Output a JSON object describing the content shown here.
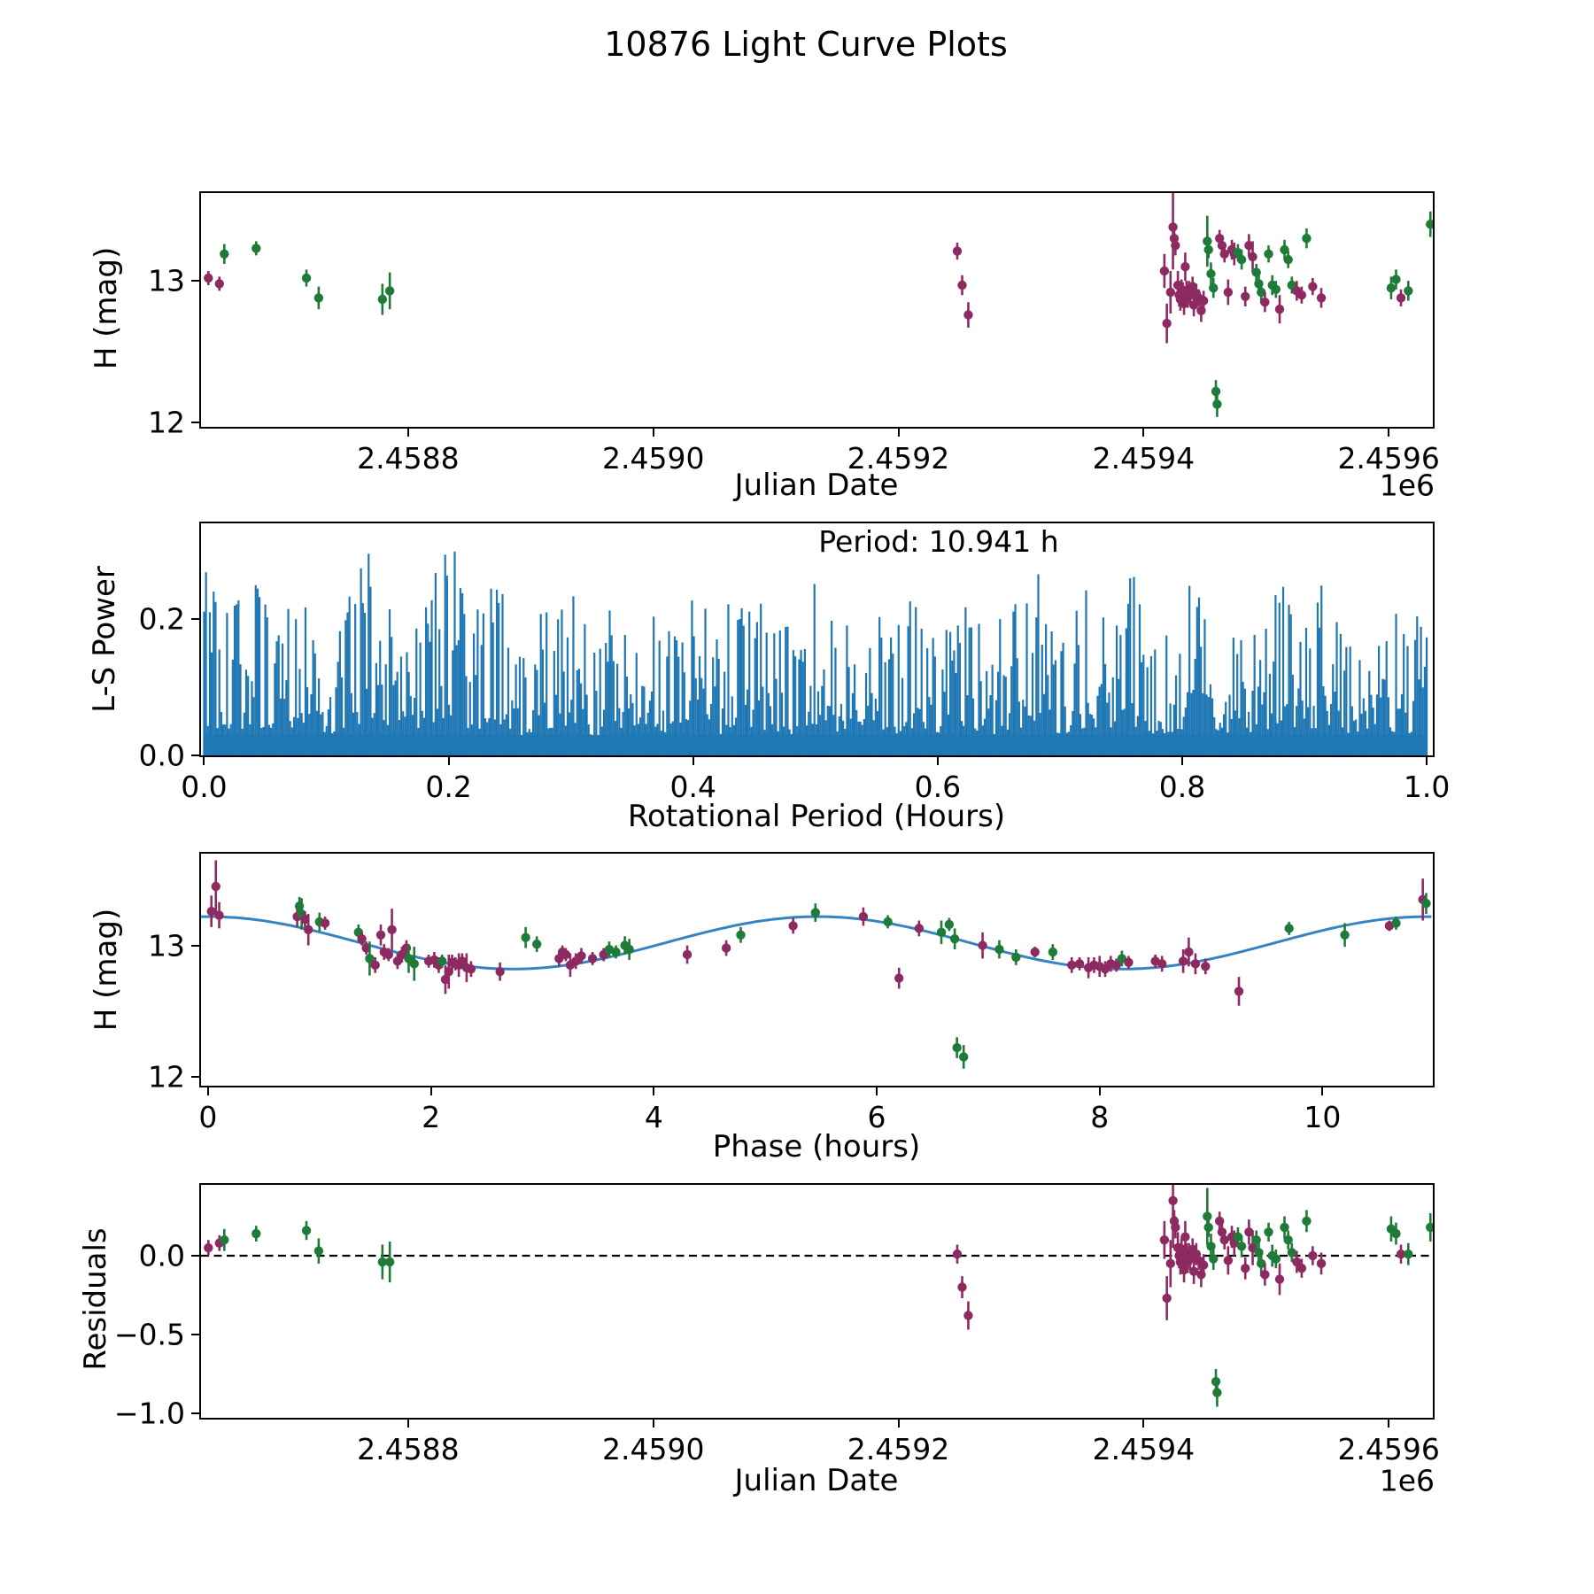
{
  "title": "10876 Light Curve Plots",
  "colors": {
    "green": "#1e7b38",
    "purple": "#8e2a62",
    "periodogram_blue": "#1f77b4",
    "fit_curve_blue": "#3584c2",
    "axis_black": "#000000"
  },
  "chart_data": [
    {
      "type": "scatter",
      "id": "jd-magnitude",
      "xlabel": "Julian Date",
      "ylabel": "H (mag)",
      "offset_text": "1e6",
      "xlim": [
        2458631,
        2459636
      ],
      "ylim": [
        11.97,
        13.62
      ],
      "xticks": {
        "values": [
          2458800,
          2459000,
          2459200,
          2459400,
          2459600
        ],
        "labels": [
          "2.4588",
          "2.4590",
          "2.4592",
          "2.4594",
          "2.4596"
        ]
      },
      "yticks": {
        "values": [
          12,
          13
        ],
        "labels": [
          "12",
          "13"
        ]
      },
      "series_note": "points = [jd, H_mag, err, residual, band] band g=green telescope, p=purple telescope",
      "points": [
        [
          2458637,
          13.02,
          0.05,
          0.05,
          "p"
        ],
        [
          2458646,
          12.98,
          0.05,
          0.08,
          "p"
        ],
        [
          2458650,
          13.19,
          0.07,
          0.1,
          "g"
        ],
        [
          2458676,
          13.23,
          0.05,
          0.14,
          "g"
        ],
        [
          2458717,
          13.02,
          0.06,
          0.16,
          "g"
        ],
        [
          2458727,
          12.88,
          0.08,
          0.03,
          "g"
        ],
        [
          2458779,
          12.87,
          0.11,
          -0.04,
          "g"
        ],
        [
          2458785,
          12.93,
          0.13,
          -0.04,
          "g"
        ],
        [
          2459248,
          13.21,
          0.06,
          0.01,
          "p"
        ],
        [
          2459252,
          12.97,
          0.07,
          -0.2,
          "p"
        ],
        [
          2459257,
          12.76,
          0.09,
          -0.38,
          "p"
        ],
        [
          2459417,
          13.07,
          0.12,
          0.1,
          "p"
        ],
        [
          2459419,
          12.7,
          0.14,
          -0.27,
          "p"
        ],
        [
          2459422,
          12.92,
          0.15,
          -0.05,
          "p"
        ],
        [
          2459424,
          13.38,
          0.3,
          0.35,
          "p"
        ],
        [
          2459425,
          13.3,
          0.07,
          0.22,
          "p"
        ],
        [
          2459426,
          13.25,
          0.07,
          0.18,
          "p"
        ],
        [
          2459428,
          12.97,
          0.1,
          0.05,
          "p"
        ],
        [
          2459429,
          12.9,
          0.08,
          0.0,
          "p"
        ],
        [
          2459430,
          12.87,
          0.08,
          -0.04,
          "p"
        ],
        [
          2459431,
          12.94,
          0.07,
          0.04,
          "p"
        ],
        [
          2459432,
          12.9,
          0.09,
          -0.02,
          "p"
        ],
        [
          2459433,
          12.84,
          0.08,
          -0.09,
          "p"
        ],
        [
          2459434,
          13.1,
          0.1,
          0.12,
          "p"
        ],
        [
          2459435,
          12.92,
          0.08,
          0.0,
          "p"
        ],
        [
          2459436,
          12.88,
          0.07,
          -0.04,
          "p"
        ],
        [
          2459437,
          12.94,
          0.06,
          0.02,
          "p"
        ],
        [
          2459438,
          12.9,
          0.07,
          -0.02,
          "p"
        ],
        [
          2459440,
          12.96,
          0.07,
          0.04,
          "p"
        ],
        [
          2459441,
          12.83,
          0.08,
          -0.1,
          "p"
        ],
        [
          2459443,
          12.91,
          0.07,
          0.01,
          "p"
        ],
        [
          2459445,
          12.88,
          0.06,
          -0.03,
          "p"
        ],
        [
          2459447,
          12.79,
          0.08,
          -0.12,
          "p"
        ],
        [
          2459449,
          12.86,
          0.07,
          -0.06,
          "p"
        ],
        [
          2459452,
          13.28,
          0.18,
          0.25,
          "g"
        ],
        [
          2459453,
          13.22,
          0.06,
          0.18,
          "g"
        ],
        [
          2459455,
          13.05,
          0.08,
          0.06,
          "g"
        ],
        [
          2459457,
          12.95,
          0.07,
          -0.02,
          "g"
        ],
        [
          2459459,
          12.22,
          0.08,
          -0.8,
          "g"
        ],
        [
          2459460,
          12.13,
          0.09,
          -0.87,
          "g"
        ],
        [
          2459462,
          13.3,
          0.06,
          0.22,
          "p"
        ],
        [
          2459464,
          13.25,
          0.07,
          0.15,
          "p"
        ],
        [
          2459466,
          13.19,
          0.06,
          0.1,
          "p"
        ],
        [
          2459469,
          12.92,
          0.09,
          -0.03,
          "p"
        ],
        [
          2459472,
          13.22,
          0.07,
          0.12,
          "p"
        ],
        [
          2459474,
          13.19,
          0.08,
          0.08,
          "p"
        ],
        [
          2459477,
          13.2,
          0.06,
          0.12,
          "g"
        ],
        [
          2459480,
          13.15,
          0.07,
          0.06,
          "g"
        ],
        [
          2459483,
          12.89,
          0.07,
          -0.08,
          "p"
        ],
        [
          2459486,
          13.25,
          0.08,
          0.15,
          "p"
        ],
        [
          2459489,
          13.17,
          0.11,
          0.05,
          "p"
        ],
        [
          2459492,
          13.06,
          0.06,
          0.1,
          "g"
        ],
        [
          2459494,
          12.98,
          0.07,
          0.02,
          "g"
        ],
        [
          2459496,
          12.92,
          0.08,
          -0.05,
          "g"
        ],
        [
          2459499,
          12.85,
          0.07,
          -0.12,
          "p"
        ],
        [
          2459502,
          13.19,
          0.06,
          0.15,
          "g"
        ],
        [
          2459505,
          12.97,
          0.07,
          0.0,
          "g"
        ],
        [
          2459508,
          12.94,
          0.06,
          -0.02,
          "g"
        ],
        [
          2459511,
          12.8,
          0.1,
          -0.15,
          "p"
        ],
        [
          2459515,
          13.22,
          0.07,
          0.18,
          "g"
        ],
        [
          2459518,
          13.15,
          0.06,
          0.1,
          "g"
        ],
        [
          2459521,
          12.97,
          0.06,
          0.02,
          "g"
        ],
        [
          2459525,
          12.93,
          0.07,
          -0.04,
          "p"
        ],
        [
          2459529,
          12.9,
          0.06,
          -0.08,
          "p"
        ],
        [
          2459533,
          13.3,
          0.07,
          0.22,
          "g"
        ],
        [
          2459538,
          12.96,
          0.06,
          0.0,
          "p"
        ],
        [
          2459545,
          12.88,
          0.07,
          -0.05,
          "p"
        ],
        [
          2459602,
          12.95,
          0.08,
          0.17,
          "g"
        ],
        [
          2459606,
          13.01,
          0.07,
          0.14,
          "g"
        ],
        [
          2459610,
          12.88,
          0.06,
          0.01,
          "p"
        ],
        [
          2459616,
          12.93,
          0.07,
          0.01,
          "g"
        ],
        [
          2459634,
          13.4,
          0.09,
          0.18,
          "g"
        ]
      ]
    },
    {
      "type": "line",
      "id": "periodogram",
      "xlabel": "Rotational Period (Hours)",
      "ylabel": "L-S Power",
      "annotation": "Period: 10.941 h",
      "xlim": [
        -0.0025,
        1.005
      ],
      "ylim": [
        0,
        0.34
      ],
      "xticks": {
        "values": [
          0.0,
          0.2,
          0.4,
          0.6,
          0.8,
          1.0
        ],
        "labels": [
          "0.0",
          "0.2",
          "0.4",
          "0.6",
          "0.8",
          "1.0"
        ]
      },
      "yticks": {
        "values": [
          0.0,
          0.2
        ],
        "labels": [
          "0.0",
          "0.2"
        ]
      },
      "peak_power_max": 0.34,
      "baseline_fill_level": 0.03,
      "n_spikes": 640,
      "envelope_note": "local spike-height envelope sampled every 0.02 in x (0 to 1)",
      "envelope": [
        0.28,
        0.21,
        0.27,
        0.2,
        0.29,
        0.18,
        0.26,
        0.32,
        0.19,
        0.27,
        0.34,
        0.22,
        0.3,
        0.18,
        0.24,
        0.28,
        0.17,
        0.25,
        0.29,
        0.2,
        0.26,
        0.18,
        0.28,
        0.23,
        0.19,
        0.27,
        0.21,
        0.28,
        0.18,
        0.24,
        0.2,
        0.26,
        0.17,
        0.23,
        0.28,
        0.19,
        0.25,
        0.21,
        0.27,
        0.18,
        0.24,
        0.28,
        0.17,
        0.22,
        0.26,
        0.19,
        0.28,
        0.16,
        0.23,
        0.2,
        0.21
      ]
    },
    {
      "type": "scatter",
      "id": "phase-folded",
      "xlabel": "Phase (hours)",
      "ylabel": "H (mag)",
      "xlim": [
        -0.063,
        10.99
      ],
      "ylim": [
        11.93,
        13.7
      ],
      "xticks": {
        "values": [
          0,
          2,
          4,
          6,
          8,
          10
        ],
        "labels": [
          "0",
          "2",
          "4",
          "6",
          "8",
          "10"
        ]
      },
      "yticks": {
        "values": [
          12,
          13
        ],
        "labels": [
          "12",
          "13"
        ]
      },
      "fit": {
        "mean_mag": 13.02,
        "amplitude": 0.2,
        "period_hours": 5.4705,
        "phase_of_max": 0.0
      },
      "series_note": "points = [phase_hours, H_mag, err, band]",
      "points": [
        [
          0.03,
          13.26,
          0.12,
          "p"
        ],
        [
          0.07,
          13.45,
          0.2,
          "p"
        ],
        [
          0.1,
          13.23,
          0.1,
          "p"
        ],
        [
          0.8,
          13.22,
          0.08,
          "p"
        ],
        [
          0.82,
          13.3,
          0.07,
          "g"
        ],
        [
          0.84,
          13.24,
          0.12,
          "g"
        ],
        [
          0.87,
          13.2,
          0.06,
          "p"
        ],
        [
          0.9,
          13.12,
          0.12,
          "p"
        ],
        [
          1.0,
          13.18,
          0.07,
          "g"
        ],
        [
          1.05,
          13.17,
          0.05,
          "p"
        ],
        [
          1.35,
          13.1,
          0.06,
          "g"
        ],
        [
          1.38,
          13.05,
          0.05,
          "p"
        ],
        [
          1.42,
          12.98,
          0.05,
          "p"
        ],
        [
          1.45,
          12.9,
          0.13,
          "g"
        ],
        [
          1.5,
          12.85,
          0.06,
          "p"
        ],
        [
          1.55,
          13.08,
          0.08,
          "p"
        ],
        [
          1.58,
          12.95,
          0.06,
          "p"
        ],
        [
          1.62,
          12.93,
          0.05,
          "p"
        ],
        [
          1.65,
          13.12,
          0.16,
          "p"
        ],
        [
          1.7,
          12.88,
          0.06,
          "p"
        ],
        [
          1.74,
          12.93,
          0.06,
          "p"
        ],
        [
          1.78,
          12.98,
          0.06,
          "p"
        ],
        [
          1.8,
          12.9,
          0.11,
          "g"
        ],
        [
          1.85,
          12.86,
          0.13,
          "g"
        ],
        [
          1.98,
          12.88,
          0.05,
          "p"
        ],
        [
          2.03,
          12.89,
          0.06,
          "p"
        ],
        [
          2.07,
          12.85,
          0.06,
          "p"
        ],
        [
          2.1,
          12.88,
          0.05,
          "g"
        ],
        [
          2.13,
          12.74,
          0.11,
          "p"
        ],
        [
          2.16,
          12.8,
          0.13,
          "p"
        ],
        [
          2.19,
          12.87,
          0.06,
          "p"
        ],
        [
          2.22,
          12.86,
          0.05,
          "p"
        ],
        [
          2.25,
          12.85,
          0.09,
          "p"
        ],
        [
          2.28,
          12.88,
          0.06,
          "p"
        ],
        [
          2.32,
          12.83,
          0.11,
          "p"
        ],
        [
          2.36,
          12.82,
          0.06,
          "p"
        ],
        [
          2.62,
          12.8,
          0.07,
          "p"
        ],
        [
          2.85,
          13.06,
          0.08,
          "g"
        ],
        [
          2.95,
          13.01,
          0.06,
          "g"
        ],
        [
          3.15,
          12.9,
          0.06,
          "p"
        ],
        [
          3.18,
          12.95,
          0.05,
          "p"
        ],
        [
          3.21,
          12.93,
          0.05,
          "p"
        ],
        [
          3.25,
          12.85,
          0.09,
          "p"
        ],
        [
          3.3,
          12.88,
          0.06,
          "p"
        ],
        [
          3.35,
          12.92,
          0.06,
          "p"
        ],
        [
          3.45,
          12.9,
          0.05,
          "p"
        ],
        [
          3.55,
          12.93,
          0.05,
          "p"
        ],
        [
          3.6,
          12.97,
          0.06,
          "g"
        ],
        [
          3.66,
          12.95,
          0.05,
          "g"
        ],
        [
          3.74,
          13.0,
          0.07,
          "g"
        ],
        [
          3.78,
          12.97,
          0.08,
          "g"
        ],
        [
          4.3,
          12.93,
          0.07,
          "p"
        ],
        [
          4.65,
          12.98,
          0.06,
          "p"
        ],
        [
          4.78,
          13.08,
          0.06,
          "g"
        ],
        [
          5.25,
          13.15,
          0.06,
          "p"
        ],
        [
          5.45,
          13.25,
          0.07,
          "g"
        ],
        [
          5.88,
          13.22,
          0.07,
          "p"
        ],
        [
          6.1,
          13.18,
          0.05,
          "g"
        ],
        [
          6.2,
          12.75,
          0.08,
          "p"
        ],
        [
          6.38,
          13.13,
          0.06,
          "p"
        ],
        [
          6.58,
          13.1,
          0.09,
          "g"
        ],
        [
          6.65,
          13.16,
          0.05,
          "g"
        ],
        [
          6.7,
          13.05,
          0.08,
          "g"
        ],
        [
          6.72,
          12.22,
          0.08,
          "g"
        ],
        [
          6.78,
          12.15,
          0.09,
          "g"
        ],
        [
          6.95,
          13.0,
          0.1,
          "p"
        ],
        [
          7.1,
          12.97,
          0.07,
          "g"
        ],
        [
          7.25,
          12.91,
          0.06,
          "g"
        ],
        [
          7.42,
          12.95,
          0.04,
          "p"
        ],
        [
          7.58,
          12.95,
          0.06,
          "g"
        ],
        [
          7.75,
          12.85,
          0.06,
          "p"
        ],
        [
          7.82,
          12.86,
          0.05,
          "p"
        ],
        [
          7.9,
          12.83,
          0.08,
          "p"
        ],
        [
          7.95,
          12.85,
          0.06,
          "p"
        ],
        [
          8.0,
          12.84,
          0.08,
          "p"
        ],
        [
          8.05,
          12.82,
          0.06,
          "p"
        ],
        [
          8.1,
          12.86,
          0.06,
          "p"
        ],
        [
          8.15,
          12.85,
          0.05,
          "p"
        ],
        [
          8.2,
          12.9,
          0.06,
          "g"
        ],
        [
          8.26,
          12.87,
          0.05,
          "p"
        ],
        [
          8.5,
          12.88,
          0.05,
          "p"
        ],
        [
          8.56,
          12.86,
          0.06,
          "p"
        ],
        [
          8.75,
          12.88,
          0.09,
          "p"
        ],
        [
          8.8,
          12.95,
          0.11,
          "p"
        ],
        [
          8.86,
          12.86,
          0.08,
          "p"
        ],
        [
          8.95,
          12.84,
          0.06,
          "p"
        ],
        [
          9.25,
          12.65,
          0.11,
          "p"
        ],
        [
          9.7,
          13.13,
          0.05,
          "g"
        ],
        [
          10.2,
          13.08,
          0.09,
          "g"
        ],
        [
          10.6,
          13.15,
          0.04,
          "p"
        ],
        [
          10.66,
          13.17,
          0.05,
          "g"
        ],
        [
          10.9,
          13.35,
          0.16,
          "p"
        ],
        [
          10.93,
          13.32,
          0.08,
          "g"
        ]
      ]
    },
    {
      "type": "scatter",
      "id": "residuals",
      "xlabel": "Julian Date",
      "ylabel": "Residuals",
      "offset_text": "1e6",
      "xlim": [
        2458631,
        2459636
      ],
      "ylim": [
        -1.03,
        0.45
      ],
      "xticks": {
        "values": [
          2458800,
          2459000,
          2459200,
          2459400,
          2459600
        ],
        "labels": [
          "2.4588",
          "2.4590",
          "2.4592",
          "2.4594",
          "2.4596"
        ]
      },
      "yticks": {
        "values": [
          0.0,
          -0.5,
          -1.0
        ],
        "labels": [
          "0.0",
          "−0.5",
          "−1.0"
        ]
      },
      "zero_line": {
        "style": "dashed",
        "y": 0.0
      },
      "points_note": "uses residual column of chart_data[0].points"
    }
  ]
}
